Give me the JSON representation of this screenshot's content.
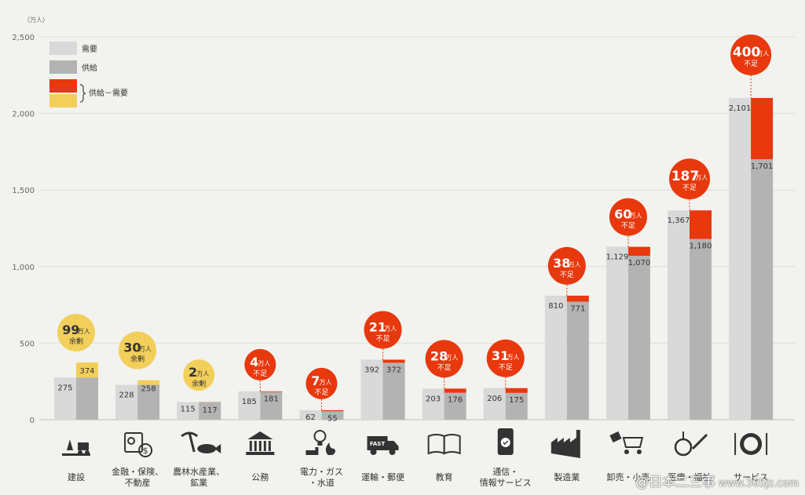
{
  "chart_data": {
    "type": "bar",
    "unit_label": "（万人）",
    "y_ticks": [
      0,
      500,
      1000,
      1500,
      2000,
      2500
    ],
    "y_tick_labels": [
      "0",
      "500",
      "1,000",
      "1,500",
      "2,000",
      "2,500"
    ],
    "ylim": [
      0,
      2500
    ],
    "grid": true,
    "legend_position": "top-left",
    "legend": {
      "demand": "需要",
      "supply": "供給",
      "diff": "供給－需要"
    },
    "colors": {
      "demand": "#d9d9d9",
      "supply": "#b3b3b3",
      "shortage": "#e8380d",
      "surplus": "#f2cf5a",
      "background": "#f2f2ee",
      "grid": "#dcdcdc",
      "badge_text": "#ffffff",
      "surplus_badge_text": "#333333"
    },
    "categories": [
      {
        "label_lines": [
          "建設"
        ],
        "icon": "construction-icon",
        "demand": 275,
        "supply": 374,
        "demand_label": "275",
        "supply_label": "374",
        "gap_value": "99",
        "gap_unit": "万人",
        "gap_word": "余剰",
        "gap_type": "surplus"
      },
      {
        "label_lines": [
          "金融・保険、",
          "不動産"
        ],
        "icon": "finance-icon",
        "demand": 228,
        "supply": 258,
        "demand_label": "228",
        "supply_label": "258",
        "gap_value": "30",
        "gap_unit": "万人",
        "gap_word": "余剰",
        "gap_type": "surplus"
      },
      {
        "label_lines": [
          "農林水産業、",
          "鉱業"
        ],
        "icon": "agriculture-icon",
        "demand": 115,
        "supply": 117,
        "demand_label": "115",
        "supply_label": "117",
        "gap_value": "2",
        "gap_unit": "万人",
        "gap_word": "余剰",
        "gap_type": "surplus"
      },
      {
        "label_lines": [
          "公務"
        ],
        "icon": "government-building-icon",
        "demand": 185,
        "supply": 181,
        "demand_label": "185",
        "supply_label": "181",
        "gap_value": "4",
        "gap_unit": "万人",
        "gap_word": "不足",
        "gap_type": "shortage"
      },
      {
        "label_lines": [
          "電力・ガス",
          "・水道"
        ],
        "icon": "utilities-icon",
        "demand": 62,
        "supply": 55,
        "demand_label": "62",
        "supply_label": "55",
        "gap_value": "7",
        "gap_unit": "万人",
        "gap_word": "不足",
        "gap_type": "shortage"
      },
      {
        "label_lines": [
          "運輸・郵便"
        ],
        "icon": "delivery-truck-icon",
        "demand": 392,
        "supply": 372,
        "demand_label": "392",
        "supply_label": "372",
        "gap_value": "21",
        "gap_unit": "万人",
        "gap_word": "不足",
        "gap_type": "shortage"
      },
      {
        "label_lines": [
          "教育"
        ],
        "icon": "book-icon",
        "demand": 203,
        "supply": 176,
        "demand_label": "203",
        "supply_label": "176",
        "gap_value": "28",
        "gap_unit": "万人",
        "gap_word": "不足",
        "gap_type": "shortage"
      },
      {
        "label_lines": [
          "通信・",
          "情報サービス"
        ],
        "icon": "smartphone-icon",
        "demand": 206,
        "supply": 175,
        "demand_label": "206",
        "supply_label": "175",
        "gap_value": "31",
        "gap_unit": "万人",
        "gap_word": "不足",
        "gap_type": "shortage"
      },
      {
        "label_lines": [
          "製造業"
        ],
        "icon": "factory-icon",
        "demand": 810,
        "supply": 771,
        "demand_label": "810",
        "supply_label": "771",
        "gap_value": "38",
        "gap_unit": "万人",
        "gap_word": "不足",
        "gap_type": "shortage"
      },
      {
        "label_lines": [
          "卸売・小売"
        ],
        "icon": "shopping-cart-icon",
        "demand": 1129,
        "supply": 1070,
        "demand_label": "1,129",
        "supply_label": "1,070",
        "gap_value": "60",
        "gap_unit": "万人",
        "gap_word": "不足",
        "gap_type": "shortage"
      },
      {
        "label_lines": [
          "医療・福祉"
        ],
        "icon": "medical-welfare-icon",
        "demand": 1367,
        "supply": 1180,
        "demand_label": "1,367",
        "supply_label": "1,180",
        "gap_value": "187",
        "gap_unit": "万人",
        "gap_word": "不足",
        "gap_type": "shortage"
      },
      {
        "label_lines": [
          "サービス"
        ],
        "icon": "dining-icon",
        "demand": 2101,
        "supply": 1701,
        "demand_label": "2,101",
        "supply_label": "1,701",
        "gap_value": "400",
        "gap_unit": "万人",
        "gap_word": "不足",
        "gap_type": "shortage"
      }
    ]
  },
  "watermark": {
    "text": "@日本二三事",
    "site": "www.365jz.com"
  }
}
